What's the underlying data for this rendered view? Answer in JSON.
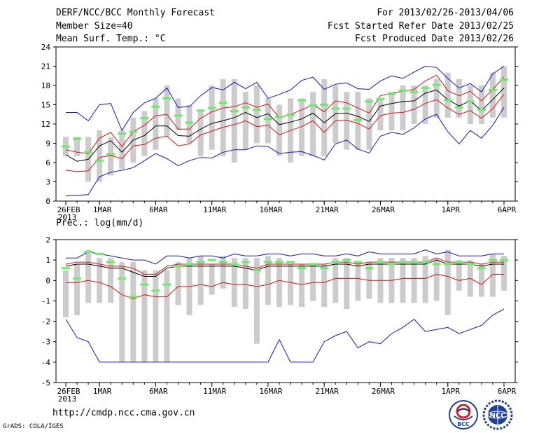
{
  "header": {
    "title": "DERF/NCC/BCC Monthly Forecast",
    "member_size": "Member Size=40",
    "variable": "Mean Surf. Temp.: °C",
    "period": "For 2013/02/26-2013/04/06",
    "refer_date": "Fcst Started Refer Date 2013/02/25",
    "produced_date": "Fcst Produced Date 2013/02/26"
  },
  "footer": {
    "url": "http://cmdp.ncc.cma.gov.cn",
    "credit": "GrADS: COLA/IGES",
    "logo_bcc": "BCC",
    "logo_ncc": "NCC"
  },
  "colors": {
    "spread": "#cccccc",
    "member": "#66ee66",
    "mean": "#000000",
    "inner": "#dd1111",
    "outer": "#1111dd"
  },
  "chart_data": [
    {
      "type": "line",
      "title": "Mean Surf. Temp.: °C",
      "ylim": [
        0,
        24
      ],
      "yticks": [
        0,
        3,
        6,
        9,
        12,
        15,
        18,
        21,
        24
      ],
      "xtick_labels": [
        "26FEB",
        "1MAR",
        "6MAR",
        "11MAR",
        "16MAR",
        "21MAR",
        "26MAR",
        "1APR",
        "6APR"
      ],
      "xtick_index": [
        0,
        3,
        8,
        13,
        18,
        23,
        28,
        34,
        39
      ],
      "year_label": "2013",
      "box_low": [
        7,
        7,
        3,
        3,
        4,
        5,
        6,
        7,
        8,
        10,
        11,
        9,
        7,
        8,
        7,
        6,
        8,
        9,
        9,
        7,
        6,
        7,
        7,
        7,
        9,
        8,
        8,
        8,
        11,
        11,
        11,
        12,
        12,
        13,
        13,
        13,
        12,
        12,
        13,
        13
      ],
      "box_high": [
        10,
        10,
        10,
        11,
        10,
        11,
        13,
        14,
        16,
        18,
        16,
        15,
        14,
        18,
        19,
        19,
        17,
        18,
        16,
        15,
        16,
        16,
        17,
        19,
        18,
        17,
        17,
        16,
        16,
        17,
        18,
        18,
        18,
        19,
        20,
        19,
        18,
        18,
        20,
        21
      ],
      "member": [
        8.5,
        9.7,
        7.6,
        6.3,
        7.3,
        10.5,
        10.8,
        12.9,
        14.7,
        16,
        13.3,
        12.2,
        14.1,
        14.5,
        15.3,
        14,
        14.6,
        14.2,
        12.8,
        13.1,
        13.4,
        15.7,
        14.9,
        15,
        14.4,
        14.4,
        12.6,
        15.5,
        15.9,
        16.7,
        17.2,
        17,
        17.6,
        18.1,
        15.7,
        14.6,
        15.5,
        14.2,
        17.3,
        18.9
      ],
      "mean": [
        7.2,
        6.2,
        6.5,
        8.6,
        9.4,
        7.6,
        9.5,
        10.2,
        11.7,
        11.7,
        10.2,
        10.1,
        11.2,
        12.1,
        12.5,
        13,
        13.8,
        13,
        13.6,
        11.9,
        12.3,
        12.8,
        13.7,
        12.2,
        13.6,
        13.7,
        13.2,
        12.4,
        14.8,
        15.2,
        15.5,
        15.6,
        16.8,
        17.3,
        15.8,
        14.8,
        15.6,
        14.1,
        15.8,
        17.6
      ],
      "inner_hi": [
        8,
        7.6,
        7.4,
        9.8,
        10.7,
        8.5,
        10.8,
        11.8,
        13.3,
        13.5,
        11.2,
        11.2,
        12.9,
        13.9,
        14.5,
        14.7,
        15.3,
        14.6,
        15.1,
        13,
        13.5,
        14.2,
        15,
        13.9,
        15.6,
        15.3,
        14.5,
        13.7,
        16.4,
        16.8,
        17.1,
        17.4,
        18.7,
        19.6,
        17.2,
        16.4,
        17.1,
        15.6,
        17.4,
        19.3
      ],
      "inner_lo": [
        4.8,
        4.6,
        4.7,
        6.8,
        7.1,
        6.6,
        8.6,
        8.8,
        9.8,
        10.1,
        8.6,
        8.9,
        10.3,
        10.9,
        11.5,
        11.9,
        12.5,
        11.6,
        11.8,
        10.3,
        11,
        11.6,
        12.5,
        10.7,
        12.5,
        12.6,
        12.1,
        11.2,
        13.3,
        13.7,
        13.8,
        14.3,
        15.2,
        15.8,
        14.5,
        13.5,
        14.1,
        12.9,
        14.4,
        16.6
      ],
      "outer_hi": [
        13.8,
        13.8,
        12.5,
        15,
        15.2,
        11,
        13.8,
        15.3,
        16,
        17.6,
        14.6,
        14.7,
        16.4,
        17.7,
        17.3,
        18.5,
        17.5,
        18.5,
        16,
        16.6,
        17.3,
        18.8,
        19.3,
        17.4,
        18.2,
        18.4,
        17.5,
        17.4,
        18.7,
        19.5,
        19.1,
        20.1,
        21,
        20.8,
        19.1,
        17.6,
        18.3,
        17,
        19.8,
        21
      ],
      "outer_lo": [
        0.8,
        0.9,
        1,
        3.8,
        4.5,
        4.8,
        5.2,
        6.3,
        7.4,
        6.6,
        5.5,
        6.3,
        6.8,
        6.7,
        7.6,
        8,
        8,
        8.6,
        8.5,
        7.4,
        7.6,
        7.7,
        7.1,
        6.4,
        8.9,
        9.5,
        8.1,
        7.5,
        10.1,
        10.7,
        10.4,
        11.4,
        12.8,
        13.5,
        10.8,
        8.9,
        11,
        9.8,
        11.8,
        14.6
      ]
    },
    {
      "type": "line",
      "title": "Prec.: log(mm/d)",
      "ylim": [
        -5,
        2
      ],
      "yticks": [
        -5,
        -4,
        -3,
        -2,
        -1,
        0,
        1,
        2
      ],
      "xtick_labels": [
        "26FEB",
        "1MAR",
        "6MAR",
        "11MAR",
        "16MAR",
        "21MAR",
        "26MAR",
        "1APR",
        "6APR"
      ],
      "xtick_index": [
        0,
        3,
        8,
        13,
        18,
        23,
        28,
        34,
        39
      ],
      "year_label": "2013",
      "box_low": [
        -1.8,
        -1.7,
        -1.1,
        -1.1,
        -1.1,
        -4,
        -4,
        -4,
        -4,
        -4,
        -1.2,
        -1.7,
        -1.2,
        -0.7,
        -0.4,
        -1.3,
        -1.4,
        -3.1,
        -1.2,
        -1.3,
        -1.2,
        -1.3,
        -1,
        -1.3,
        -1.1,
        -1.4,
        -1,
        -0.9,
        -1.1,
        -1.1,
        -1.1,
        -1.1,
        -1.1,
        -1,
        -1.7,
        -0.5,
        -0.8,
        -0.8,
        -0.8,
        -0.5
      ],
      "box_high": [
        0.5,
        0.8,
        1.5,
        1.1,
        1.1,
        0.9,
        0.9,
        0.5,
        0.5,
        0.5,
        0.9,
        1.1,
        1.2,
        0.8,
        1.2,
        1.1,
        1.1,
        1.1,
        1.2,
        1.1,
        0.8,
        0.8,
        0.8,
        0.8,
        1.1,
        1.1,
        0.9,
        0.9,
        1.1,
        1.1,
        1.1,
        1.1,
        1.2,
        1.1,
        1.5,
        1,
        1,
        0.8,
        1.3,
        1.2
      ],
      "member": [
        0.6,
        0.1,
        1.4,
        1.3,
        0.9,
        0.1,
        -0.8,
        -0.2,
        -0.5,
        -0.2,
        0.7,
        0.8,
        0.9,
        1,
        0.9,
        0.8,
        0.9,
        0.5,
        0.9,
        0.9,
        0.9,
        0.6,
        0.8,
        0.6,
        0.9,
        1,
        0.9,
        0.6,
        0.9,
        0.8,
        0.9,
        0.9,
        0.9,
        0.8,
        0.8,
        0.9,
        0.8,
        0.6,
        1,
        1
      ],
      "mean": [
        0.7,
        0.8,
        0.8,
        0.7,
        0.6,
        0.6,
        0.4,
        0.2,
        0.2,
        0.6,
        0.7,
        0.7,
        0.7,
        0.7,
        0.7,
        0.7,
        0.6,
        0.5,
        0.7,
        0.7,
        0.7,
        0.7,
        0.7,
        0.7,
        0.8,
        0.8,
        0.7,
        0.8,
        0.8,
        0.8,
        0.8,
        0.8,
        0.8,
        1,
        0.8,
        0.8,
        0.8,
        0.7,
        0.8,
        0.8
      ],
      "inner_hi": [
        0.8,
        0.9,
        0.9,
        0.8,
        0.7,
        0.7,
        0.6,
        0.3,
        0.3,
        0.7,
        0.8,
        0.8,
        0.8,
        0.8,
        0.8,
        0.8,
        0.7,
        0.6,
        0.8,
        0.8,
        0.8,
        0.8,
        0.8,
        0.8,
        0.9,
        0.9,
        0.8,
        0.9,
        0.9,
        0.9,
        0.9,
        0.9,
        0.9,
        1.1,
        0.9,
        0.9,
        0.9,
        0.8,
        0.9,
        0.9
      ],
      "inner_lo": [
        -0.1,
        -0.1,
        0,
        -0.1,
        -0.3,
        -0.7,
        -0.9,
        -0.7,
        -0.8,
        -0.8,
        -0.3,
        -0.3,
        -0.2,
        -0.3,
        -0.1,
        -0.2,
        -0.2,
        -0.3,
        -0.2,
        0,
        -0.1,
        -0.2,
        -0.1,
        -0.1,
        0.1,
        0.1,
        0.1,
        0,
        0,
        0,
        0.1,
        0.1,
        0.1,
        0.3,
        0.2,
        0,
        0.1,
        -0.2,
        0.3,
        0.3
      ],
      "outer_hi": [
        1.1,
        1.1,
        1.4,
        1.3,
        1.2,
        1.1,
        1,
        1,
        0.8,
        1.2,
        1.2,
        1.1,
        1.2,
        1.2,
        1.1,
        1.3,
        1.2,
        1.2,
        1.3,
        1.3,
        1.2,
        1.3,
        1.3,
        1.2,
        1.2,
        1.3,
        1.2,
        1.4,
        1.3,
        1.3,
        1.3,
        1.3,
        1.5,
        1.3,
        1.4,
        1.2,
        1.2,
        1.2,
        1.3,
        1.3
      ],
      "outer_lo": [
        -1.9,
        -2.8,
        -3,
        -4,
        -4,
        -4,
        -4,
        -4,
        -4,
        -4,
        -4,
        -4,
        -4,
        -4,
        -4,
        -4,
        -4,
        -4,
        -4,
        -2.9,
        -4,
        -4,
        -4,
        -3,
        -2.7,
        -2.5,
        -3.3,
        -3,
        -3.1,
        -2.6,
        -2.3,
        -1.9,
        -2.5,
        -2.4,
        -2.3,
        -2.6,
        -2.4,
        -2.2,
        -1.7,
        -1.4
      ]
    }
  ]
}
